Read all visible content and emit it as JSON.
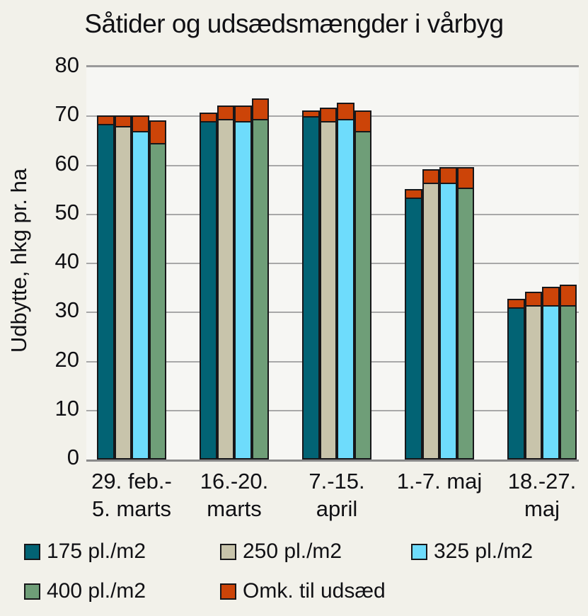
{
  "page": {
    "background_color": "#f2f1ea",
    "plot_background_color": "#f6f6f3",
    "gridline_color": "#a8a8a8",
    "axis_line_color": "#8a8a8a",
    "bar_border_color": "#17171a",
    "text_color": "#101014"
  },
  "title": "Såtider og udsædsmængder i vårbyg",
  "y_axis": {
    "title": "Udbytte, hkg pr. ha",
    "ticks": [
      80,
      70,
      60,
      50,
      40,
      30,
      20,
      10,
      0
    ],
    "max": 80
  },
  "x_axis": {
    "category_label_lines": [
      [
        "29. feb.-",
        "5. marts"
      ],
      [
        "16.-20.",
        "marts"
      ],
      [
        "7.-15.",
        "april"
      ],
      [
        "1.-7. maj"
      ],
      [
        "18.-27.",
        "maj"
      ]
    ]
  },
  "legend": {
    "items": [
      {
        "label": "175 pl./m2",
        "color": "#026374"
      },
      {
        "label": "250 pl./m2",
        "color": "#c8c4ab"
      },
      {
        "label": "325 pl./m2",
        "color": "#6edcfc"
      },
      {
        "label": "400 pl./m2",
        "color": "#6f9e78"
      },
      {
        "label": "Omk. til udsæd",
        "color": "#cc4408"
      }
    ]
  },
  "chart_data": {
    "type": "bar",
    "stacked": true,
    "title": "Såtider og udsædsmængder i vårbyg",
    "xlabel": "",
    "ylabel": "Udbytte, hkg pr. ha",
    "ylim": [
      0,
      80
    ],
    "grid": "horizontal",
    "legend_position": "bottom",
    "categories": [
      "29. feb.- 5. marts",
      "16.-20. marts",
      "7.-15. april",
      "1.-7. maj",
      "18.-27. maj"
    ],
    "note": "Each bar = net yield in the seed-rate color plus an orange 'Omk. til udsæd' (seed cost) segment stacked on top; values in hkg pr. ha",
    "series": [
      {
        "name": "175 pl./m2",
        "color": "#026374",
        "yield_values": [
          68.5,
          69,
          70,
          53.5,
          31
        ],
        "seed_cost_values": [
          2,
          2,
          1.5,
          2,
          2
        ],
        "totals": [
          70.5,
          71,
          71.5,
          55.5,
          33
        ]
      },
      {
        "name": "250 pl./m2",
        "color": "#c8c4ab",
        "yield_values": [
          68,
          69.5,
          69,
          56.5,
          31.5
        ],
        "seed_cost_values": [
          2.5,
          3,
          3,
          3,
          3
        ],
        "totals": [
          70.5,
          72.5,
          72,
          59.5,
          34.5
        ]
      },
      {
        "name": "325 pl./m2",
        "color": "#6edcfc",
        "yield_values": [
          67,
          69,
          69.5,
          56.5,
          31.5
        ],
        "seed_cost_values": [
          3.5,
          3.5,
          3.5,
          3.5,
          4
        ],
        "totals": [
          70.5,
          72.5,
          73,
          60,
          35.5
        ]
      },
      {
        "name": "400 pl./m2",
        "color": "#6f9e78",
        "yield_values": [
          64.5,
          69.5,
          67,
          55.5,
          31.5
        ],
        "seed_cost_values": [
          5,
          4.5,
          4.5,
          4.5,
          4.5
        ],
        "totals": [
          69.5,
          74,
          71.5,
          60,
          36
        ]
      }
    ],
    "overlay_series": {
      "name": "Omk. til udsæd",
      "color": "#cc4408"
    }
  }
}
